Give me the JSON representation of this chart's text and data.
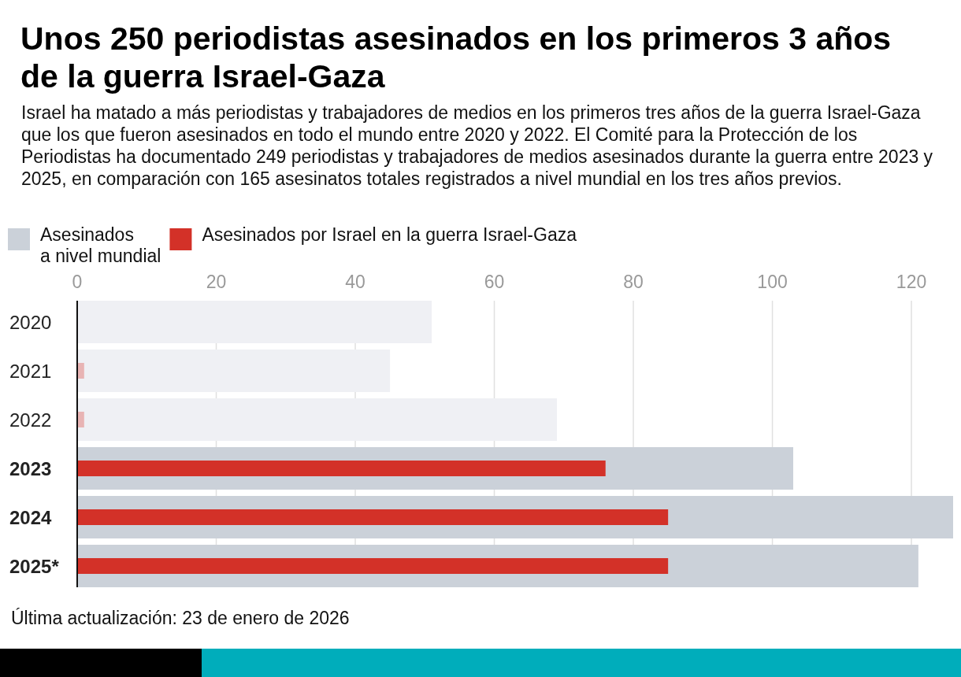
{
  "chart_data": {
    "type": "bar",
    "orientation": "horizontal",
    "title": "Unos 250 periodistas asesinados en los primeros 3 años de la guerra Israel-Gaza",
    "subtitle": "Israel ha matado a más periodistas y trabajadores de medios en los primeros tres años de la guerra Israel-Gaza que los que fueron asesinados en todo el mundo entre 2020 y 2022. El Comité para la Protección de los Periodistas ha documentado 249 periodistas y trabajadores de medios asesinados durante la guerra entre 2023 y 2025, en comparación con 165 asesinatos totales registrados a nivel mundial en los tres años previos.",
    "categories": [
      "2020",
      "2021",
      "2022",
      "2023",
      "2024",
      "2025*"
    ],
    "series": [
      {
        "name": "Asesinados\na nivel mundial",
        "color": "#cbd1d9",
        "colors": [
          "#eff0f4",
          "#eff0f4",
          "#eff0f4",
          "#cbd1d9",
          "#cbd1d9",
          "#cbd1d9"
        ],
        "values": [
          51,
          45,
          69,
          103,
          126,
          121
        ]
      },
      {
        "name": "Asesinados por Israel en la guerra Israel-Gaza",
        "color": "#d33128",
        "colors": [
          "#e8b4b4",
          "#e8b4b4",
          "#e8b4b4",
          "#d33128",
          "#d33128",
          "#d33128"
        ],
        "values": [
          null,
          1,
          1,
          76,
          85,
          85
        ]
      }
    ],
    "xlim": [
      0,
      126
    ],
    "xticks": [
      0,
      20,
      40,
      60,
      80,
      100,
      120
    ],
    "grid": "x",
    "legend": "top left",
    "annotations": [
      "Última actualización: 23 de enero de 2026"
    ]
  }
}
